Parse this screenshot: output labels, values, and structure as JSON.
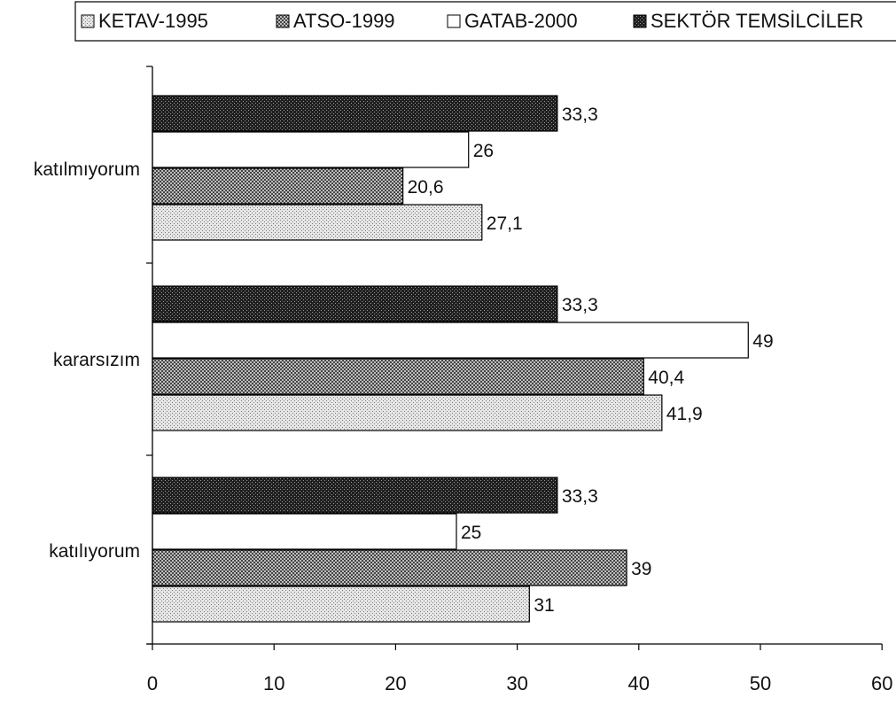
{
  "chart_data": {
    "type": "bar",
    "orientation": "horizontal",
    "categories": [
      "katılmıyorum",
      "kararsızım",
      "katılıyorum"
    ],
    "series": [
      {
        "name": "KETAV-1995",
        "values": [
          27.1,
          41.9,
          31
        ],
        "labels": [
          "27,1",
          "41,9",
          "31"
        ],
        "color": "#cfcfcf",
        "pattern": "dots-light"
      },
      {
        "name": "ATSO-1999",
        "values": [
          20.6,
          40.4,
          39
        ],
        "labels": [
          "20,6",
          "40,4",
          "39"
        ],
        "color": "#8a8a8a",
        "pattern": "cross-medium"
      },
      {
        "name": "GATAB-2000",
        "values": [
          26,
          49,
          25
        ],
        "labels": [
          "26",
          "49",
          "25"
        ],
        "color": "#ffffff",
        "pattern": "none"
      },
      {
        "name": "SEKTÖR TEMSİLCİLERİ",
        "values": [
          33.3,
          33.3,
          33.3
        ],
        "labels": [
          "33,3",
          "33,3",
          "33,3"
        ],
        "color": "#3a3a3a",
        "pattern": "cross-dark"
      }
    ],
    "x_ticks": [
      "0",
      "10",
      "20",
      "30",
      "40",
      "50",
      "60"
    ],
    "xlim": [
      0,
      60
    ],
    "legend_position": "top",
    "legend_text": "SEKTÖR TEMSİLCİLER",
    "title": "",
    "xlabel": "",
    "ylabel": "",
    "grid": false
  }
}
